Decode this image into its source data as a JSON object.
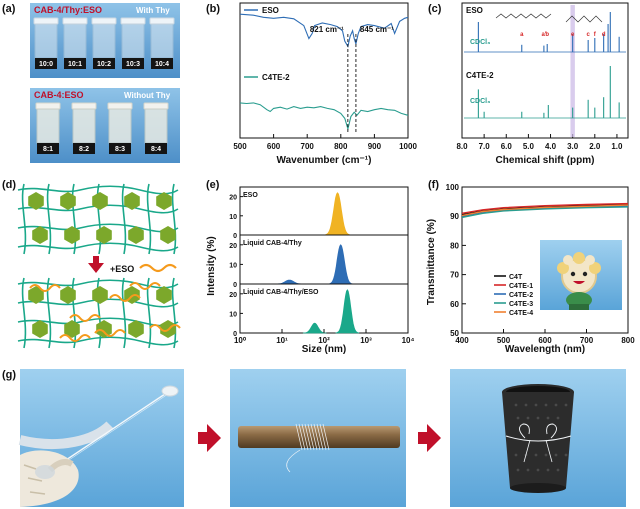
{
  "panels": {
    "a": {
      "label": "(a)",
      "top_title": "CAB-4/Thy:ESO",
      "top_note": "With Thy",
      "top_vials": [
        "10:0",
        "10:1",
        "10:2",
        "10:3",
        "10:4"
      ],
      "bottom_title": "CAB-4:ESO",
      "bottom_note": "Without Thy",
      "bottom_vials": [
        "8:1",
        "8:2",
        "8:3",
        "8:4"
      ]
    },
    "b": {
      "label": "(b)"
    },
    "c": {
      "label": "(c)"
    },
    "d": {
      "label": "(d)",
      "add_label": "+ESO"
    },
    "e": {
      "label": "(e)"
    },
    "f": {
      "label": "(f)"
    },
    "g": {
      "label": "(g)"
    }
  },
  "chart_data": [
    {
      "id": "b",
      "type": "line",
      "title": "",
      "xlabel": "Wavenumber (cm⁻¹)",
      "ylabel": "",
      "xlim": [
        500,
        1000
      ],
      "xticks": [
        "500",
        "600",
        "700",
        "800",
        "900",
        "1000"
      ],
      "annotations": [
        "821 cm⁻¹",
        "845 cm⁻¹"
      ],
      "legend": [
        "ESO",
        "C4TE-2"
      ],
      "series": [
        {
          "name": "ESO",
          "color": "#2e6db5",
          "x": [
            500,
            540,
            570,
            600,
            630,
            660,
            690,
            705,
            715,
            722,
            730,
            745,
            770,
            790,
            805,
            812,
            821,
            828,
            835,
            840,
            845,
            852,
            860,
            880,
            900,
            930,
            950,
            960,
            975,
            990,
            1000
          ],
          "y": [
            0.92,
            0.9,
            0.86,
            0.84,
            0.86,
            0.83,
            0.7,
            0.45,
            0.55,
            0.7,
            0.72,
            0.75,
            0.72,
            0.68,
            0.6,
            0.4,
            0.3,
            0.5,
            0.6,
            0.45,
            0.35,
            0.55,
            0.68,
            0.72,
            0.7,
            0.65,
            0.74,
            0.55,
            0.78,
            0.84,
            0.86
          ]
        },
        {
          "name": "C4TE-2",
          "color": "#2a9d8f",
          "x": [
            500,
            520,
            540,
            560,
            580,
            590,
            600,
            620,
            640,
            660,
            680,
            700,
            720,
            740,
            760,
            780,
            800,
            812,
            821,
            830,
            840,
            848,
            860,
            880,
            900,
            920,
            940,
            960,
            980,
            1000
          ],
          "y": [
            0.47,
            0.46,
            0.47,
            0.44,
            0.36,
            0.33,
            0.38,
            0.4,
            0.37,
            0.41,
            0.38,
            0.4,
            0.39,
            0.41,
            0.38,
            0.36,
            0.3,
            0.22,
            0.05,
            0.25,
            0.32,
            0.27,
            0.35,
            0.33,
            0.36,
            0.38,
            0.36,
            0.35,
            0.3,
            0.27
          ]
        }
      ]
    },
    {
      "id": "c",
      "type": "line",
      "title": "",
      "xlabel": "Chemical shift (ppm)",
      "ylabel": "",
      "xlim": [
        8.0,
        0.5
      ],
      "xticks": [
        "8.0",
        "7.0",
        "6.0",
        "5.0",
        "4.0",
        "3.0",
        "2.0",
        "1.0"
      ],
      "annotations": [
        "CDCl₃",
        "CDCl₃",
        "a",
        "a'",
        "b",
        "c",
        "d",
        "e",
        "f"
      ],
      "legend": [
        "ESO",
        "C4TE-2"
      ],
      "series": [
        {
          "name": "ESO",
          "color": "#2e6db5",
          "x": [
            7.26,
            5.3,
            4.3,
            4.15,
            3.0,
            2.3,
            2.0,
            1.6,
            1.4,
            1.3,
            0.9
          ],
          "y": [
            0.75,
            0.18,
            0.16,
            0.2,
            0.45,
            0.3,
            0.35,
            0.45,
            0.7,
            1.0,
            0.38
          ]
        },
        {
          "name": "C4TE-2",
          "color": "#2a9d8f",
          "x": [
            7.26,
            7.0,
            5.3,
            4.3,
            4.1,
            3.0,
            2.3,
            2.0,
            1.6,
            1.3,
            0.9
          ],
          "y": [
            0.55,
            0.12,
            0.12,
            0.1,
            0.25,
            0.2,
            0.35,
            0.2,
            0.4,
            1.0,
            0.3
          ]
        }
      ]
    },
    {
      "id": "e",
      "type": "area",
      "title": "",
      "xlabel": "Size (nm)",
      "ylabel": "Intensity (%)",
      "xlim": [
        1,
        10000
      ],
      "xscale": "log",
      "xticks": [
        "10⁰",
        "10¹",
        "10²",
        "10³",
        "10⁴"
      ],
      "yticks": [
        "0",
        "10",
        "20"
      ],
      "subplots": [
        {
          "name": "ESO",
          "color": "#f0b323",
          "peaks": [
            {
              "center": 210,
              "height": 22,
              "width": 0.09
            }
          ]
        },
        {
          "name": "Liquid CAB-4/Thy",
          "color": "#2e6db5",
          "peaks": [
            {
              "center": 15,
              "height": 2,
              "width": 0.1
            },
            {
              "center": 250,
              "height": 20,
              "width": 0.085
            }
          ]
        },
        {
          "name": "Liquid CAB-4/Thy/ESO",
          "color": "#1aa88a",
          "peaks": [
            {
              "center": 60,
              "height": 5,
              "width": 0.08
            },
            {
              "center": 360,
              "height": 22,
              "width": 0.08
            }
          ]
        }
      ]
    },
    {
      "id": "f",
      "type": "line",
      "title": "",
      "xlabel": "Wavelength (nm)",
      "ylabel": "Transmittance (%)",
      "xlim": [
        400,
        800
      ],
      "ylim": [
        50,
        100
      ],
      "xticks": [
        "400",
        "500",
        "600",
        "700",
        "800"
      ],
      "yticks": [
        "50",
        "60",
        "70",
        "80",
        "90",
        "100"
      ],
      "series": [
        {
          "name": "C4T",
          "color": "#111111",
          "x": [
            400,
            450,
            500,
            600,
            700,
            800
          ],
          "y": [
            90.5,
            91.8,
            92.5,
            93.2,
            93.6,
            94.0
          ]
        },
        {
          "name": "C4TE-1",
          "color": "#d62728",
          "x": [
            400,
            450,
            500,
            600,
            700,
            800
          ],
          "y": [
            91.0,
            92.2,
            92.9,
            93.6,
            94.0,
            94.3
          ]
        },
        {
          "name": "C4TE-2",
          "color": "#2e6db5",
          "x": [
            400,
            450,
            500,
            600,
            700,
            800
          ],
          "y": [
            90.0,
            91.4,
            92.1,
            92.8,
            93.2,
            93.5
          ]
        },
        {
          "name": "C4TE-3",
          "color": "#2a9d8f",
          "x": [
            400,
            450,
            500,
            600,
            700,
            800
          ],
          "y": [
            89.6,
            91.0,
            91.8,
            92.5,
            92.9,
            93.2
          ]
        },
        {
          "name": "C4TE-4",
          "color": "#f08030",
          "x": [
            400,
            450,
            500,
            600,
            700,
            800
          ],
          "y": [
            90.2,
            91.6,
            92.3,
            93.0,
            93.4,
            93.8
          ]
        }
      ]
    }
  ]
}
